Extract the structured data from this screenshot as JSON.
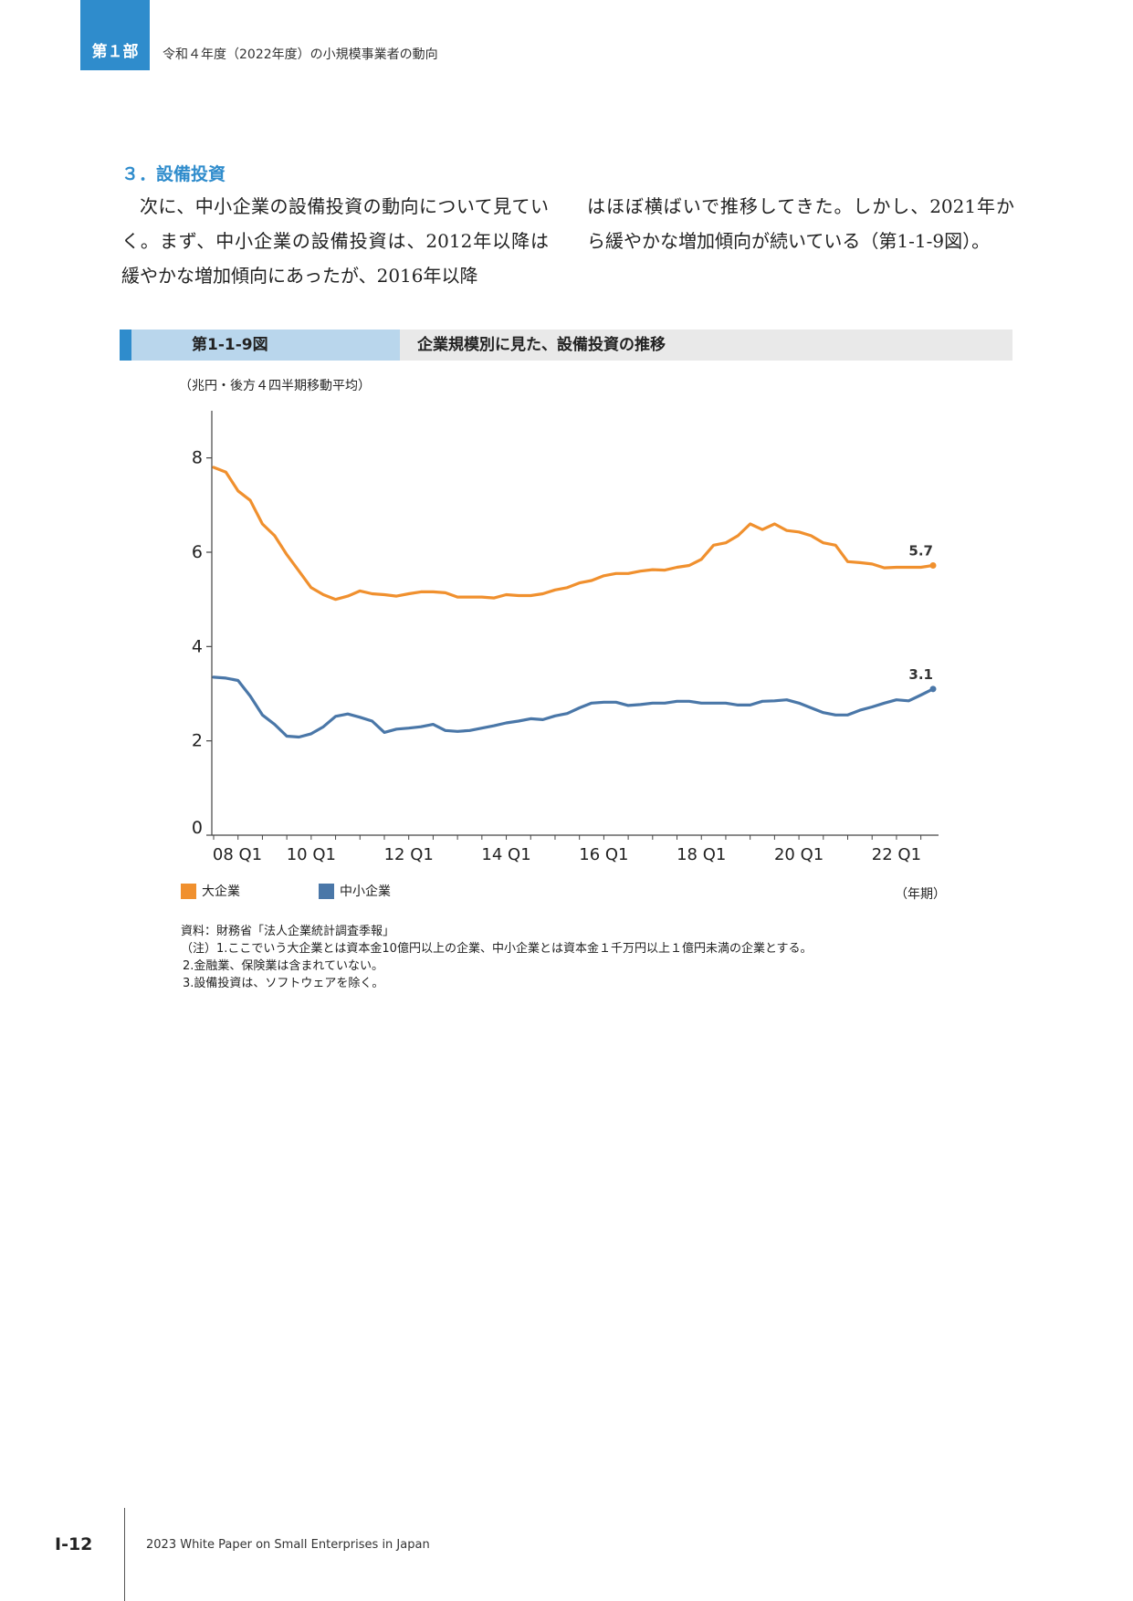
{
  "header": {
    "part_label": "第１部",
    "part_title": "令和４年度（2022年度）の小規模事業者の動向"
  },
  "section": {
    "heading": "３．設備投資",
    "paragraph_left": "次に、中小企業の設備投資の動向について見ていく。まず、中小企業の設備投資は、2012年以降は緩やかな増加傾向にあったが、2016年以降",
    "paragraph_right": "はほぼ横ばいで推移してきた。しかし、2021年から緩やかな増加傾向が続いている（第1-1-9図）。"
  },
  "figure": {
    "number": "第1-1-9図",
    "title": "企業規模別に見た、設備投資の推移",
    "unit": "（兆円・後方４四半期移動平均）",
    "x_unit": "（年期）"
  },
  "chart_data": {
    "type": "line",
    "ylim": [
      0,
      9
    ],
    "yticks": [
      0,
      2,
      4,
      6,
      8
    ],
    "x_start": "2008 Q1",
    "x_tick_labels": [
      "08 Q1",
      "10 Q1",
      "12 Q1",
      "14 Q1",
      "16 Q1",
      "18 Q1",
      "20 Q1",
      "22 Q1"
    ],
    "series": [
      {
        "name": "大企業",
        "color": "#f0902e",
        "end_label": "5.7",
        "values": [
          7.8,
          7.7,
          7.3,
          7.1,
          6.6,
          6.35,
          5.95,
          5.6,
          5.25,
          5.1,
          5.0,
          5.07,
          5.18,
          5.12,
          5.1,
          5.07,
          5.12,
          5.16,
          5.16,
          5.14,
          5.05,
          5.05,
          5.05,
          5.03,
          5.1,
          5.08,
          5.08,
          5.12,
          5.2,
          5.25,
          5.35,
          5.4,
          5.5,
          5.55,
          5.55,
          5.6,
          5.63,
          5.62,
          5.68,
          5.72,
          5.85,
          6.15,
          6.2,
          6.35,
          6.6,
          6.48,
          6.6,
          6.46,
          6.43,
          6.35,
          6.2,
          6.15,
          5.8,
          5.78,
          5.75,
          5.67,
          5.68,
          5.68,
          5.68,
          5.72
        ]
      },
      {
        "name": "中小企業",
        "color": "#4a77a8",
        "end_label": "3.1",
        "values": [
          3.35,
          3.33,
          3.28,
          2.95,
          2.55,
          2.35,
          2.1,
          2.08,
          2.15,
          2.3,
          2.52,
          2.57,
          2.5,
          2.42,
          2.18,
          2.25,
          2.27,
          2.3,
          2.35,
          2.22,
          2.2,
          2.22,
          2.27,
          2.32,
          2.38,
          2.42,
          2.47,
          2.45,
          2.53,
          2.58,
          2.7,
          2.8,
          2.82,
          2.82,
          2.75,
          2.77,
          2.8,
          2.8,
          2.84,
          2.84,
          2.8,
          2.8,
          2.8,
          2.76,
          2.76,
          2.84,
          2.85,
          2.87,
          2.8,
          2.7,
          2.6,
          2.55,
          2.55,
          2.65,
          2.72,
          2.8,
          2.87,
          2.85,
          2.97,
          3.1
        ]
      }
    ]
  },
  "notes": [
    "資料：財務省「法人企業統計調査季報」",
    "（注）1.ここでいう大企業とは資本金10億円以上の企業、中小企業とは資本金１千万円以上１億円未満の企業とする。",
    "2.金融業、保険業は含まれていない。",
    "3.設備投資は、ソフトウェアを除く。"
  ],
  "footer": {
    "page_number": "Ⅰ-12",
    "publication": "2023 White Paper on Small Enterprises in Japan"
  }
}
